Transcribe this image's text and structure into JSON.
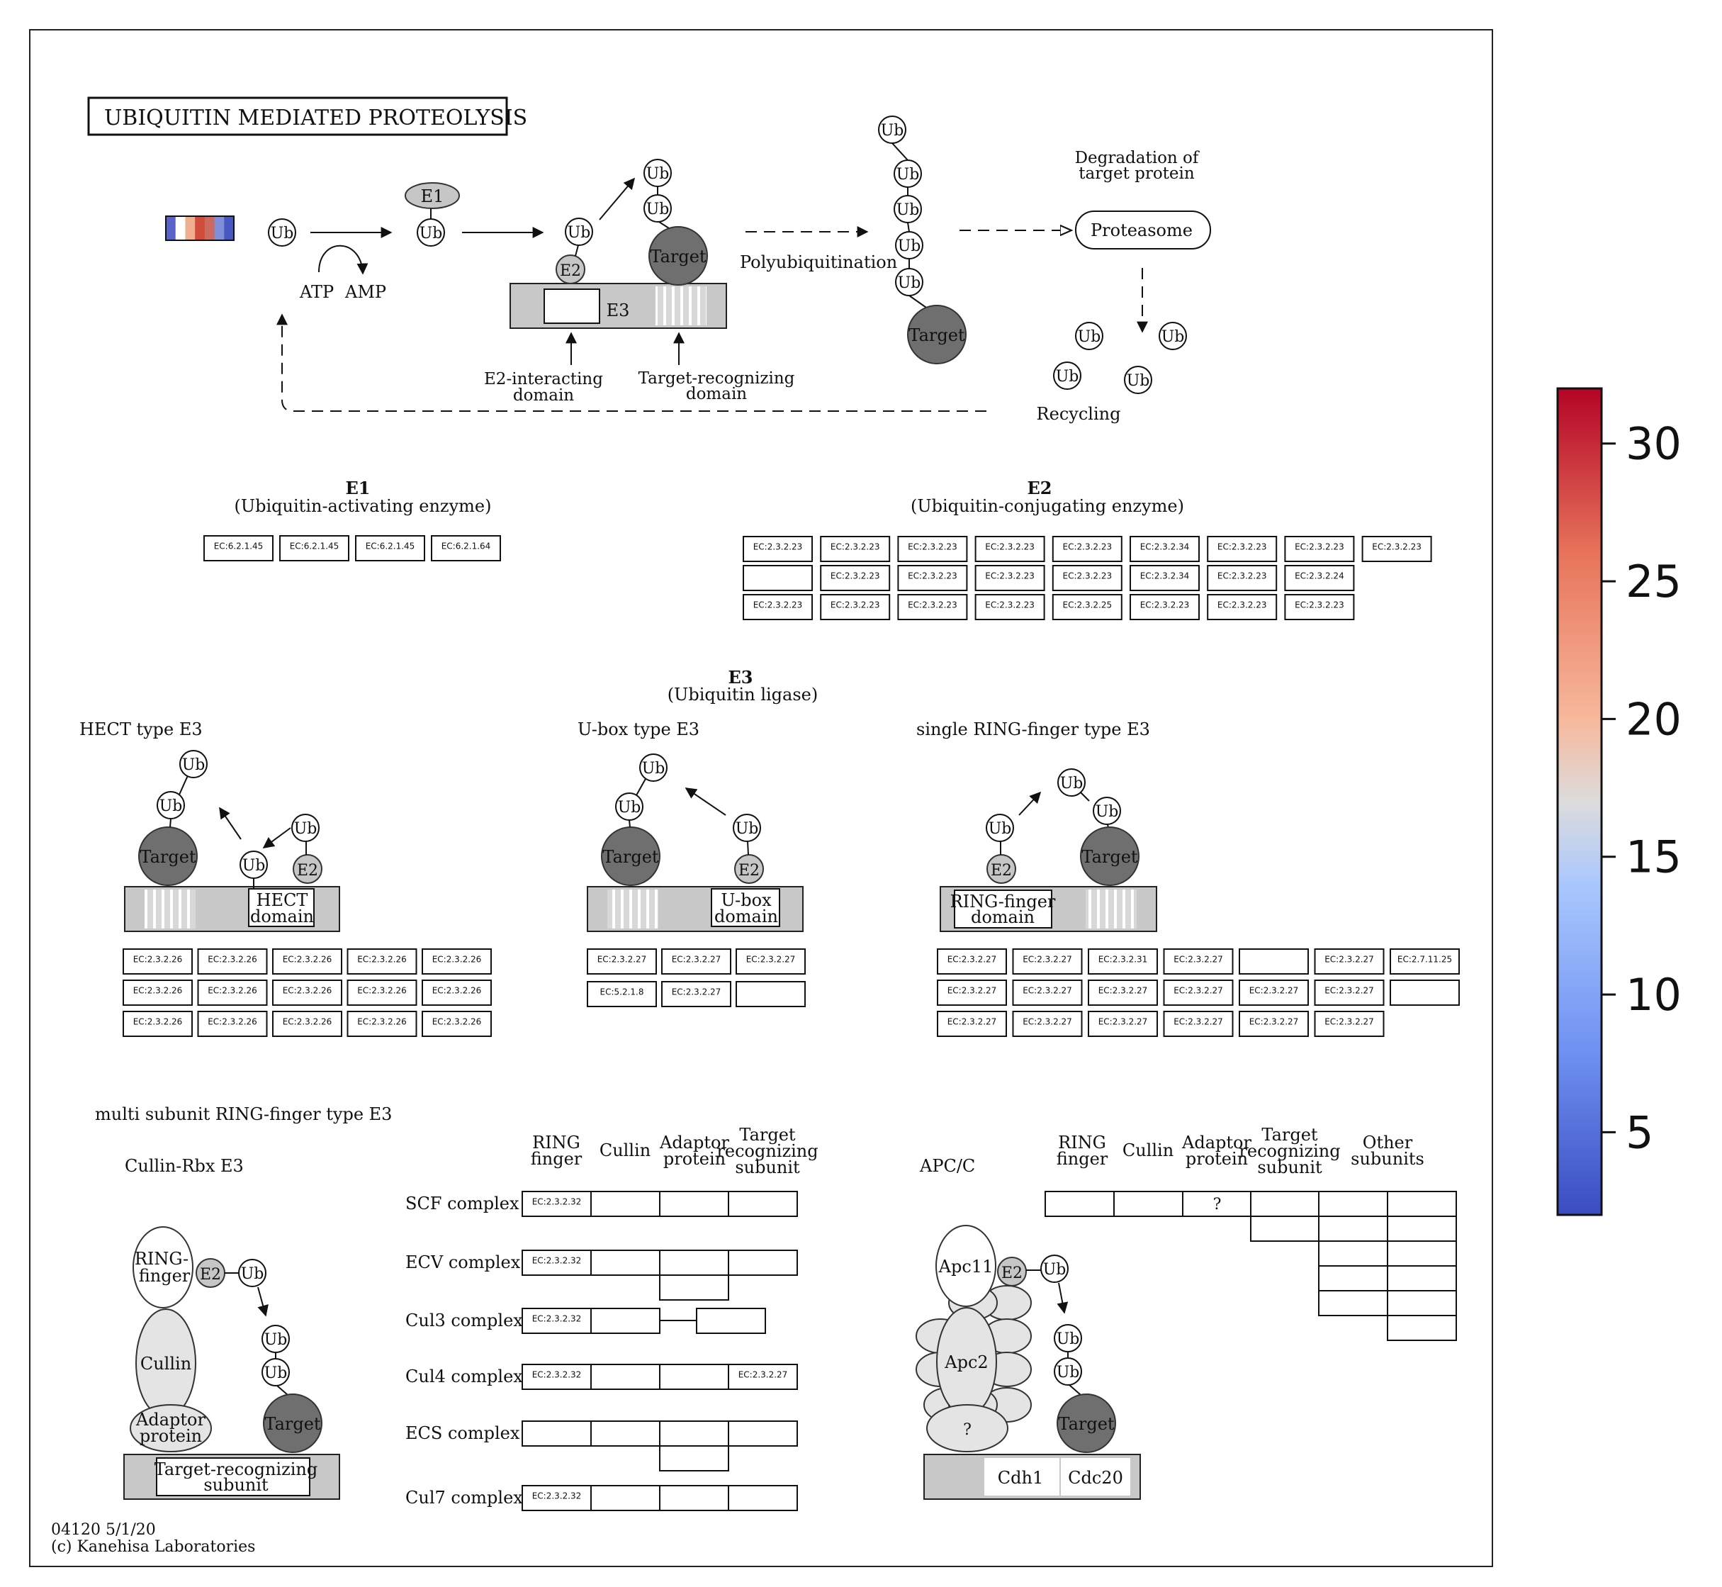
{
  "title": "UBIQUITIN MEDIATED PROTEOLYSIS",
  "colors": {
    "gene_bar": [
      "#5a64c8",
      "#ffffff",
      "#f0b090",
      "#d24c3c",
      "#cc6a60",
      "#8090d8",
      "#4858c0"
    ],
    "target": "#6f6f6f",
    "bar_gray": "#c8c8c8"
  },
  "pathway": {
    "ub": "Ub",
    "e1": "E1",
    "e2": "E2",
    "e3": "E3",
    "target": "Target",
    "atp": "ATP",
    "amp": "AMP",
    "polyubiquitination": "Polyubiquitination",
    "degradation": [
      "Degradation of",
      "target protein"
    ],
    "proteasome": "Proteasome",
    "recycling": "Recycling",
    "e2_interacting": [
      "E2-interacting",
      "domain"
    ],
    "target_recognizing": [
      "Target-recognizing",
      "domain"
    ]
  },
  "e1": {
    "title": "E1",
    "subtitle": "(Ubiquitin-activating enzyme)",
    "ecs": [
      "EC:6.2.1.45",
      "EC:6.2.1.45",
      "EC:6.2.1.45",
      "EC:6.2.1.64"
    ]
  },
  "e2": {
    "title": "E2",
    "subtitle": "(Ubiquitin-conjugating enzyme)",
    "rows": [
      [
        "EC:2.3.2.23",
        "EC:2.3.2.23",
        "EC:2.3.2.23",
        "EC:2.3.2.23",
        "EC:2.3.2.23",
        "EC:2.3.2.34",
        "EC:2.3.2.23",
        "EC:2.3.2.23",
        "EC:2.3.2.23"
      ],
      [
        "",
        "EC:2.3.2.23",
        "EC:2.3.2.23",
        "EC:2.3.2.23",
        "EC:2.3.2.23",
        "EC:2.3.2.34",
        "EC:2.3.2.23",
        "EC:2.3.2.24"
      ],
      [
        "EC:2.3.2.23",
        "EC:2.3.2.23",
        "EC:2.3.2.23",
        "EC:2.3.2.23",
        "EC:2.3.2.25",
        "EC:2.3.2.23",
        "EC:2.3.2.23",
        "EC:2.3.2.23"
      ]
    ]
  },
  "e3": {
    "title": "E3",
    "subtitle": "(Ubiquitin ligase)",
    "hect": {
      "title": "HECT type E3",
      "domain": [
        "HECT",
        "domain"
      ],
      "rows": [
        [
          "EC:2.3.2.26",
          "EC:2.3.2.26",
          "EC:2.3.2.26",
          "EC:2.3.2.26",
          "EC:2.3.2.26"
        ],
        [
          "EC:2.3.2.26",
          "EC:2.3.2.26",
          "EC:2.3.2.26",
          "EC:2.3.2.26",
          "EC:2.3.2.26"
        ],
        [
          "EC:2.3.2.26",
          "EC:2.3.2.26",
          "EC:2.3.2.26",
          "EC:2.3.2.26",
          "EC:2.3.2.26"
        ]
      ]
    },
    "ubox": {
      "title": "U-box type E3",
      "domain": [
        "U-box",
        "domain"
      ],
      "rows": [
        [
          "EC:2.3.2.27",
          "EC:2.3.2.27",
          "EC:2.3.2.27"
        ],
        [
          "EC:5.2.1.8",
          "EC:2.3.2.27",
          ""
        ]
      ]
    },
    "ring": {
      "title": "single RING-finger type E3",
      "domain": [
        "RING-finger",
        "domain"
      ],
      "rows": [
        [
          "EC:2.3.2.27",
          "EC:2.3.2.27",
          "EC:2.3.2.31",
          "EC:2.3.2.27",
          "",
          "EC:2.3.2.27",
          "EC:2.7.11.25"
        ],
        [
          "EC:2.3.2.27",
          "EC:2.3.2.27",
          "EC:2.3.2.27",
          "EC:2.3.2.27",
          "EC:2.3.2.27",
          "EC:2.3.2.27",
          ""
        ],
        [
          "EC:2.3.2.27",
          "EC:2.3.2.27",
          "EC:2.3.2.27",
          "EC:2.3.2.27",
          "EC:2.3.2.27",
          "EC:2.3.2.27"
        ]
      ]
    }
  },
  "multi": {
    "title": "multi subunit RING-finger type E3",
    "cullin_rbx": "Cullin-Rbx E3",
    "headers": [
      [
        "RING",
        "finger"
      ],
      [
        "Cullin"
      ],
      [
        "Adaptor",
        "protein"
      ],
      [
        "Target",
        "recognizing",
        "subunit"
      ]
    ],
    "complexes": [
      {
        "name": "SCF complex",
        "cells": [
          "EC:2.3.2.32",
          "",
          "",
          ""
        ]
      },
      {
        "name": "ECV complex",
        "cells": [
          "EC:2.3.2.32",
          "",
          "",
          ""
        ]
      },
      {
        "name": "Cul3 complex",
        "cells": [
          "EC:2.3.2.32",
          "",
          "",
          ""
        ]
      },
      {
        "name": "Cul4 complex",
        "cells": [
          "EC:2.3.2.32",
          "",
          "",
          "EC:2.3.2.27"
        ]
      },
      {
        "name": "ECS complex",
        "cells": [
          "",
          "",
          "",
          ""
        ]
      },
      {
        "name": "Cul7 complex",
        "cells": [
          "EC:2.3.2.32",
          "",
          "",
          ""
        ]
      }
    ],
    "diagram": {
      "ring_finger": [
        "RING-",
        "finger"
      ],
      "cullin": "Cullin",
      "adaptor": [
        "Adaptor",
        "protein"
      ],
      "target_recognizing": [
        "Target-recognizing",
        "subunit"
      ]
    },
    "apc": {
      "title": "APC/C",
      "headers": [
        [
          "RING",
          "finger"
        ],
        [
          "Cullin"
        ],
        [
          "Adaptor",
          "protein"
        ],
        [
          "Target",
          "recognizing",
          "subunit"
        ],
        [
          "Other",
          "subunits"
        ]
      ],
      "adaptor_value": "?",
      "apc11": "Apc11",
      "apc2": "Apc2",
      "unknown": "?",
      "cdh1": "Cdh1",
      "cdc20": "Cdc20"
    }
  },
  "footer": [
    "04120 5/1/20",
    "(c) Kanehisa Laboratories"
  ],
  "colorbar": {
    "ticks": [
      5,
      10,
      15,
      20,
      25,
      30
    ],
    "min": 2.0,
    "max": 32.0,
    "colormap": "coolwarm"
  }
}
